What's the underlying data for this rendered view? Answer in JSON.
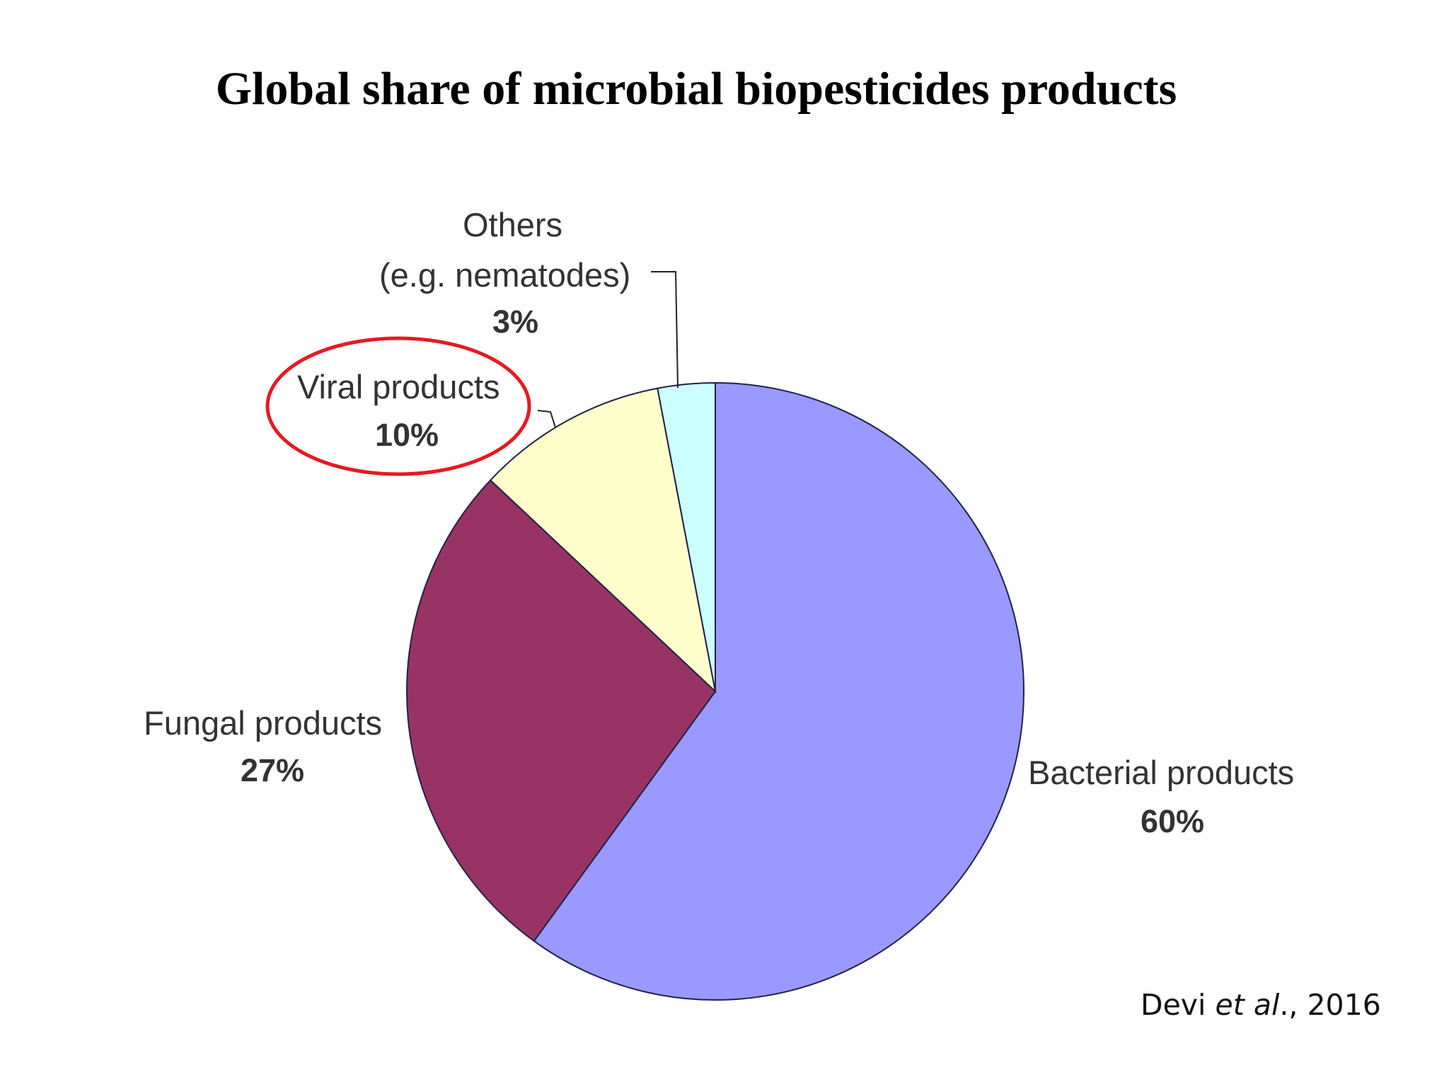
{
  "title": "Global share of microbial biopesticides products",
  "chart_data": {
    "type": "pie",
    "title": "Global share of microbial biopesticides products",
    "slices": [
      {
        "name": "Bacterial products",
        "value": 60,
        "label": "60%",
        "color": "#9999ff"
      },
      {
        "name": "Fungal products",
        "value": 27,
        "label": "27%",
        "color": "#993366"
      },
      {
        "name": "Viral products",
        "value": 10,
        "label": "10%",
        "color": "#ffffcc"
      },
      {
        "name": "Others",
        "name_line2": "(e.g. nematodes)",
        "value": 3,
        "label": "3%",
        "color": "#ccffff"
      }
    ],
    "start_angle": "12 o'clock",
    "direction": "clockwise",
    "highlight": {
      "slice": "Viral products",
      "shape": "ellipse",
      "color": "#e31b23"
    }
  },
  "citation": {
    "author": "Devi ",
    "etal": "et al",
    "rest": "., 2016"
  }
}
